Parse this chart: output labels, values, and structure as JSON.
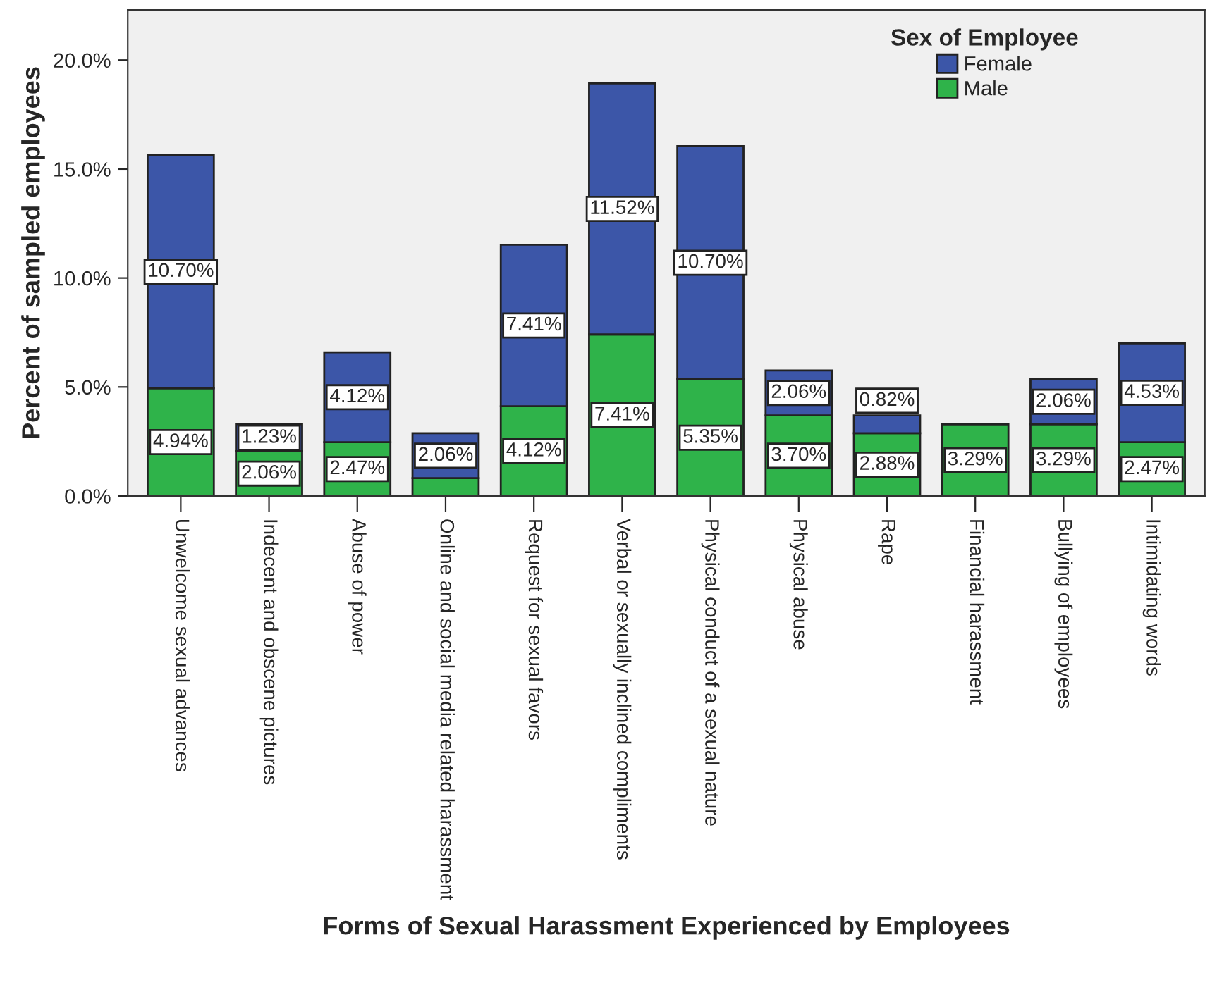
{
  "chart_data": {
    "type": "bar",
    "stacked": true,
    "xlabel": "Forms of Sexual Harassment Experienced by Employees",
    "ylabel": "Percent of sampled employees",
    "legend_title": "Sex of Employee",
    "legend": "top right",
    "grid": false,
    "categories": [
      "Unwelcome sexual advances",
      "Indecent and obscene pictures",
      "Abuse of power",
      "Online and social media related harassment",
      "Request for sexual favors",
      "Verbal or sexually inclined compliments",
      "Physical conduct of a sexual nature",
      "Physical abuse",
      "Rape",
      "Financial harassment",
      "Bullying of employees",
      "Intimidating words"
    ],
    "ylim": [
      0,
      22.3
    ],
    "yticks": [
      {
        "value": 0,
        "label": "0.0%"
      },
      {
        "value": 5,
        "label": "5.0%"
      },
      {
        "value": 10,
        "label": "10.0%"
      },
      {
        "value": 15,
        "label": "15.0%"
      },
      {
        "value": 20,
        "label": "20.0%"
      }
    ],
    "series": [
      {
        "name": "Male",
        "color": "#2fb34a",
        "values": [
          4.94,
          2.06,
          2.47,
          0.82,
          4.12,
          7.41,
          5.35,
          3.7,
          2.88,
          3.29,
          3.29,
          2.47
        ],
        "value_labels": [
          "4.94%",
          "2.06%",
          "2.47%",
          null,
          "4.12%",
          "7.41%",
          "5.35%",
          "3.70%",
          "2.88%",
          "3.29%",
          "3.29%",
          "2.47%"
        ]
      },
      {
        "name": "Female",
        "color": "#3c56a8",
        "values": [
          10.7,
          1.23,
          4.12,
          2.06,
          7.41,
          11.52,
          10.7,
          2.06,
          0.82,
          null,
          2.06,
          4.53
        ],
        "value_labels": [
          "10.70%",
          "1.23%",
          "4.12%",
          "2.06%",
          "7.41%",
          "11.52%",
          "10.70%",
          "2.06%",
          "0.82%",
          null,
          "2.06%",
          "4.53%"
        ]
      }
    ]
  }
}
